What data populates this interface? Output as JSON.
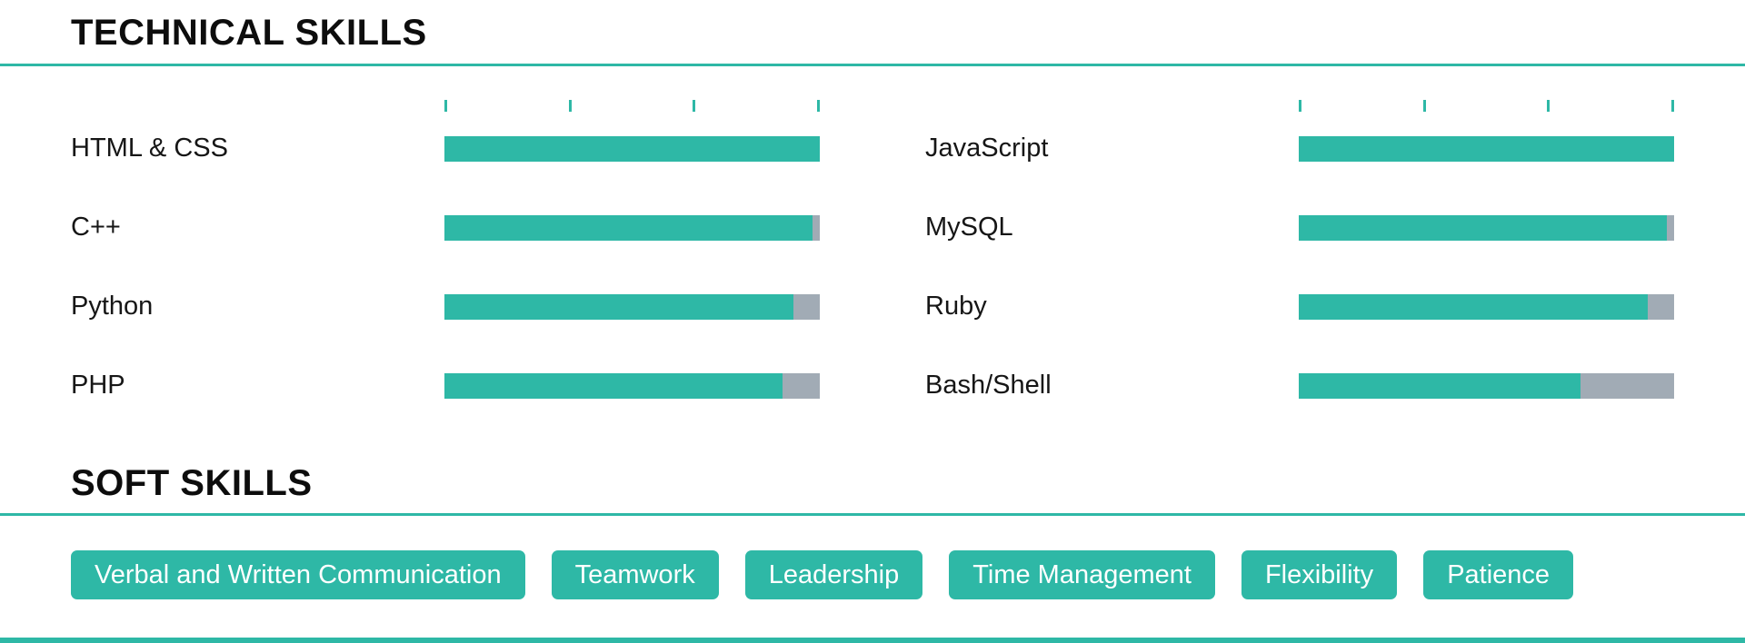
{
  "colors": {
    "accent": "#2eb8a6",
    "track": "#a1abb5"
  },
  "technical": {
    "title": "TECHNICAL SKILLS",
    "columns": [
      {
        "skills": [
          {
            "name": "HTML & CSS",
            "level": 100
          },
          {
            "name": "C++",
            "level": 98
          },
          {
            "name": "Python",
            "level": 93
          },
          {
            "name": "PHP",
            "level": 90
          }
        ]
      },
      {
        "skills": [
          {
            "name": "JavaScript",
            "level": 100
          },
          {
            "name": "MySQL",
            "level": 98
          },
          {
            "name": "Ruby",
            "level": 93
          },
          {
            "name": "Bash/Shell",
            "level": 75
          }
        ]
      }
    ]
  },
  "soft": {
    "title": "SOFT SKILLS",
    "tags": [
      "Verbal and Written Communication",
      "Teamwork",
      "Leadership",
      "Time Management",
      "Flexibility",
      "Patience"
    ]
  }
}
